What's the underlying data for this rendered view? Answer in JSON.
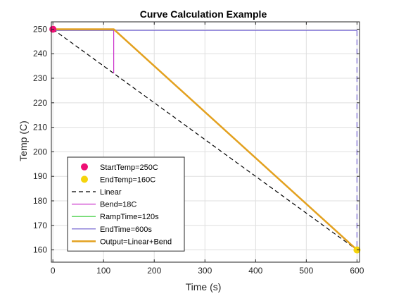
{
  "chart_data": {
    "type": "line",
    "title": "Curve Calculation Example",
    "xlabel": "Time (s)",
    "ylabel": "Temp (C)",
    "xlim": [
      -3,
      605
    ],
    "ylim": [
      155,
      253
    ],
    "xticks": [
      0,
      100,
      200,
      300,
      400,
      500,
      600
    ],
    "yticks": [
      160,
      170,
      180,
      190,
      200,
      210,
      220,
      230,
      240,
      250
    ],
    "grid": true,
    "legend_position": "bottom-left",
    "series": [
      {
        "name": "StartTemp=250C",
        "kind": "marker",
        "color": "#ee0f74",
        "x": [
          0
        ],
        "y": [
          250
        ]
      },
      {
        "name": "EndTemp=160C",
        "kind": "marker",
        "color": "#f5d40c",
        "x": [
          600
        ],
        "y": [
          160
        ]
      },
      {
        "name": "Linear",
        "kind": "line",
        "dash": "dashed",
        "color": "#000000",
        "x": [
          0,
          600
        ],
        "y": [
          250,
          160
        ]
      },
      {
        "name": "Bend=18C",
        "kind": "line",
        "dash": "solid",
        "color": "#cc33cc",
        "x": [
          120,
          120
        ],
        "y": [
          232,
          250
        ]
      },
      {
        "name": "RampTime=120s",
        "kind": "line",
        "dash": "solid",
        "color": "#33cc33",
        "x": [
          0,
          120
        ],
        "y": [
          250,
          250
        ]
      },
      {
        "name": "EndTime=600s",
        "kind": "line",
        "dash": "solid",
        "color": "#6a5acd",
        "x": [
          0,
          600
        ],
        "y": [
          249.5,
          249.5
        ]
      },
      {
        "name": "EndTime=600s (drop)",
        "kind": "line",
        "dash": "dashed",
        "color": "#6a5acd",
        "x": [
          600,
          600
        ],
        "y": [
          249.5,
          160
        ],
        "legend": false
      },
      {
        "name": "Output=Linear+Bend",
        "kind": "line",
        "dash": "solid",
        "color": "#e3a11f",
        "width": 2.5,
        "x": [
          0,
          120,
          600
        ],
        "y": [
          250,
          250,
          160
        ]
      }
    ]
  }
}
